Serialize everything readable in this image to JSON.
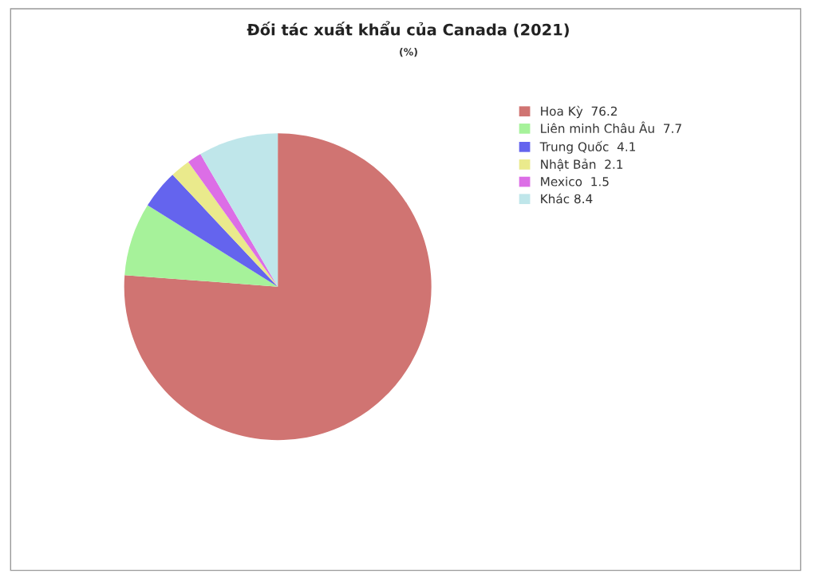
{
  "chart_data": {
    "type": "pie",
    "title": "Đối tác xuất khẩu của Canada (2021)",
    "subtitle": "(%)",
    "categories": [
      "Hoa Kỳ  76.2",
      "Liên minh Châu Âu  7.7",
      "Trung Quốc  4.1",
      "Nhật Bản  2.1",
      "Mexico  1.5",
      "Khác 8.4"
    ],
    "values": [
      76.2,
      7.7,
      4.1,
      2.1,
      1.5,
      8.4
    ],
    "colors": [
      "#d07472",
      "#a6f29a",
      "#6464ee",
      "#eaea8c",
      "#dc6ee6",
      "#bfe6ea"
    ],
    "legend": "top right"
  }
}
